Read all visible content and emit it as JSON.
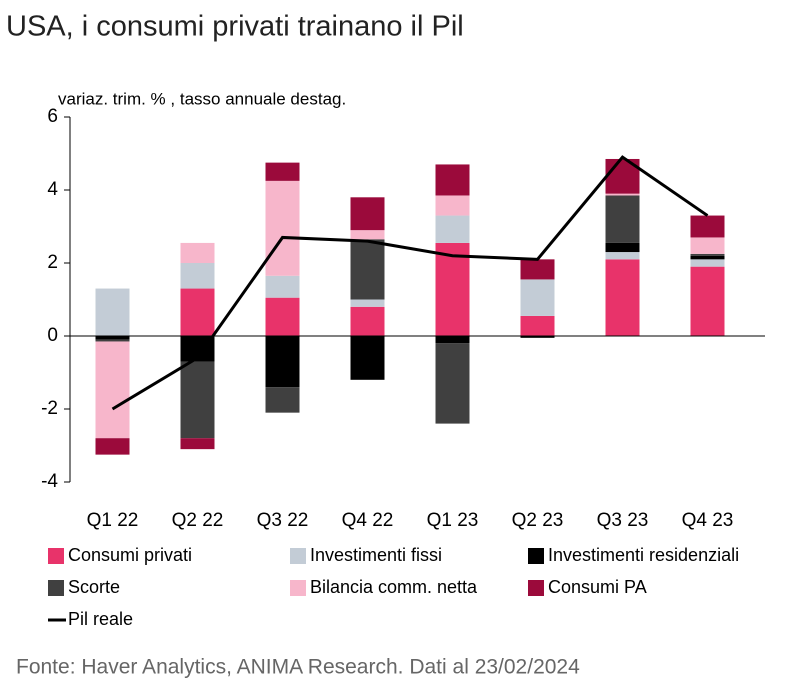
{
  "chart_data": {
    "type": "bar",
    "stacked": true,
    "title": "USA, i consumi privati trainano il Pil",
    "y_label": "variaz. trim. % , tasso annuale destag.",
    "source": "Fonte: Haver Analytics, ANIMA Research. Dati al 23/02/2024",
    "categories": [
      "Q1 22",
      "Q2 22",
      "Q3 22",
      "Q4 22",
      "Q1 23",
      "Q2 23",
      "Q3 23",
      "Q4 23"
    ],
    "ylim": [
      -4,
      6
    ],
    "yticks": [
      -4,
      -2,
      0,
      2,
      4,
      6
    ],
    "series": [
      {
        "name": "Consumi privati",
        "color": "#e8336a",
        "values": [
          0,
          1.3,
          1.05,
          0.8,
          2.55,
          0.55,
          2.1,
          1.9
        ]
      },
      {
        "name": "Investimenti fissi",
        "color": "#c3ccd6",
        "values": [
          1.3,
          0.7,
          0.6,
          0.2,
          0.75,
          1.0,
          0.2,
          0.2
        ]
      },
      {
        "name": "Investimenti residenziali",
        "color": "#000000",
        "values": [
          -0.1,
          -0.7,
          -1.4,
          -1.2,
          -0.2,
          -0.05,
          0.25,
          0.1
        ]
      },
      {
        "name": "Scorte",
        "color": "#404040",
        "values": [
          -0.05,
          -2.1,
          -0.7,
          1.65,
          -2.2,
          0,
          1.3,
          0.05
        ]
      },
      {
        "name": "Bilancia comm. netta",
        "color": "#f7b6cb",
        "values": [
          -2.65,
          0.55,
          2.6,
          0.25,
          0.55,
          0,
          0.05,
          0.45
        ]
      },
      {
        "name": "Consumi PA",
        "color": "#9b0a3b",
        "values": [
          -0.45,
          -0.3,
          0.5,
          0.9,
          0.85,
          0.55,
          0.95,
          0.6
        ]
      },
      {
        "name": "Pil reale",
        "type": "line",
        "color": "#000000",
        "values": [
          -2.0,
          -0.6,
          2.7,
          2.6,
          2.2,
          2.1,
          4.9,
          3.3
        ]
      }
    ]
  }
}
